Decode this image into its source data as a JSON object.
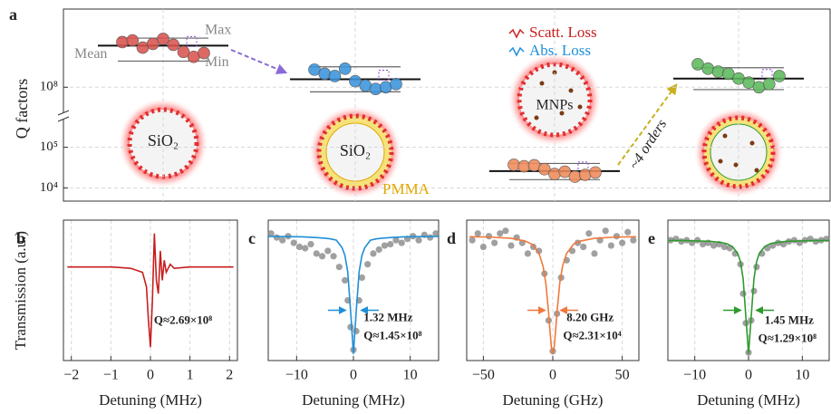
{
  "chart_data": [
    {
      "type": "scatter",
      "panel_label": "a",
      "ylabel": "Q factors",
      "yscale": "log",
      "axis_break": true,
      "ylim": [
        5000,
        200000
      ],
      "ylim_upper": [
        60000000.0,
        1000000000.0
      ],
      "yticks": [
        {
          "value": 10000,
          "label": "10⁴"
        },
        {
          "value": 100000,
          "label": "10⁵"
        },
        {
          "value": 100000000,
          "label": "10⁸"
        }
      ],
      "grid": true,
      "series": [
        {
          "color": "#d9534f",
          "values": [
            390000000.0,
            410000000.0,
            330000000.0,
            370000000.0,
            430000000.0,
            360000000.0,
            290000000.0,
            250000000.0,
            280000000.0
          ],
          "mean": 350000000.0,
          "max": 440000000.0,
          "min": 220000000.0
        },
        {
          "color": "#3a93dc",
          "values": [
            170000000.0,
            150000000.0,
            140000000.0,
            175000000.0,
            120000000.0,
            105000000.0,
            95000000.0,
            100000000.0,
            110000000.0
          ],
          "mean": 127000000.0,
          "max": 185000000.0,
          "min": 87000000.0
        },
        {
          "color": "#ee8a5a",
          "values": [
            37000,
            34000,
            36000,
            29000,
            22000,
            25000,
            19000,
            21000,
            24000
          ],
          "mean": 26000,
          "max": 40000,
          "min": 16000
        },
        {
          "color": "#5cb85c",
          "values": [
            200000000.0,
            175000000.0,
            160000000.0,
            150000000.0,
            130000000.0,
            115000000.0,
            100000000.0,
            110000000.0,
            140000000.0
          ],
          "mean": 130000000.0,
          "max": 180000000.0,
          "min": 93000000.0
        }
      ],
      "labels": {
        "max": "Max",
        "mean": "Mean",
        "min": "Min",
        "scatt_loss": "Scatt. Loss",
        "abs_loss": "Abs. Loss",
        "sio2_first": "SiO₂",
        "sio2_second": "SiO₂",
        "pmma": "PMMA",
        "mnps": "MNPs",
        "orders": "~4 orders"
      }
    },
    {
      "type": "line",
      "panel_label": "b",
      "ylabel": "Transmission (a.u.)",
      "xlabel": "Detuning (MHz)",
      "xlim": [
        -2.2,
        2.2
      ],
      "xticks": [
        {
          "value": -2,
          "label": "−2"
        },
        {
          "value": -1,
          "label": "−1"
        },
        0,
        1,
        2
      ],
      "ylim": [
        0,
        1.05
      ],
      "grid": true,
      "series": [
        {
          "style": "line",
          "color": "#c81e1e",
          "x": [
            -2.1,
            -1.5,
            -1,
            -0.5,
            -0.2,
            -0.1,
            -0.05,
            0,
            0.05,
            0.1,
            0.15,
            0.2,
            0.25,
            0.3,
            0.35,
            0.4,
            0.5,
            0.6,
            1,
            1.5,
            2.1
          ],
          "values": [
            0.7,
            0.7,
            0.7,
            0.69,
            0.66,
            0.55,
            0.3,
            0.1,
            0.45,
            0.95,
            0.6,
            0.5,
            0.82,
            0.6,
            0.75,
            0.66,
            0.72,
            0.69,
            0.7,
            0.7,
            0.7
          ]
        }
      ],
      "annotations": [
        "Q≈2.69×10⁸"
      ]
    },
    {
      "type": "line",
      "panel_label": "c",
      "xlabel": "Detuning (MHz)",
      "xlim": [
        -15,
        15
      ],
      "xticks": [
        {
          "value": -10,
          "label": "−10"
        },
        0,
        10
      ],
      "ylim": [
        0,
        1.05
      ],
      "grid": true,
      "series": [
        {
          "style": "markers",
          "color": "#777777",
          "x": [
            -14.5,
            -13.5,
            -12.5,
            -11.5,
            -10.5,
            -9.5,
            -8.5,
            -7.5,
            -6.5,
            -5.5,
            -4.5,
            -3.5,
            -2.5,
            -1.5,
            -1,
            -0.5,
            0,
            0.5,
            1,
            1.5,
            2.5,
            3.5,
            4.5,
            5.5,
            6.5,
            7.5,
            8.5,
            9.5,
            10.5,
            11.5,
            12.5,
            13.5,
            14.5
          ],
          "values": [
            0.95,
            0.92,
            0.9,
            0.93,
            0.88,
            0.85,
            0.84,
            0.87,
            0.8,
            0.78,
            0.82,
            0.78,
            0.7,
            0.6,
            0.45,
            0.25,
            0.08,
            0.22,
            0.45,
            0.62,
            0.72,
            0.8,
            0.83,
            0.86,
            0.87,
            0.9,
            0.88,
            0.91,
            0.93,
            0.9,
            0.94,
            0.92,
            0.95
          ]
        },
        {
          "style": "line",
          "color": "#1f8fd8",
          "x": [
            -15,
            -12,
            -9,
            -7,
            -5,
            -4,
            -3,
            -2,
            -1.5,
            -1,
            -0.5,
            0,
            0.5,
            1,
            1.5,
            2,
            3,
            4,
            5,
            7,
            9,
            12,
            15
          ],
          "values": [
            0.928,
            0.927,
            0.925,
            0.921,
            0.915,
            0.91,
            0.9,
            0.844,
            0.787,
            0.663,
            0.371,
            0.05,
            0.371,
            0.663,
            0.787,
            0.844,
            0.9,
            0.91,
            0.915,
            0.921,
            0.925,
            0.927,
            0.928
          ]
        }
      ],
      "annotations": [
        "1.32 MHz",
        "Q≈1.45×10⁸"
      ]
    },
    {
      "type": "line",
      "panel_label": "d",
      "xlabel": "Detuning (GHz)",
      "xlim": [
        -62,
        62
      ],
      "xticks": [
        {
          "value": -50,
          "label": "−50"
        },
        0,
        50
      ],
      "ylim": [
        0,
        1.05
      ],
      "grid": true,
      "series": [
        {
          "style": "markers",
          "color": "#777777",
          "x": [
            -58,
            -54,
            -50,
            -46,
            -42,
            -38,
            -34,
            -30,
            -26,
            -22,
            -18,
            -14,
            -10,
            -6,
            -3,
            0,
            3,
            6,
            10,
            14,
            18,
            22,
            26,
            30,
            34,
            38,
            42,
            46,
            50,
            54,
            58
          ],
          "values": [
            0.9,
            0.95,
            0.85,
            0.93,
            0.88,
            0.95,
            0.97,
            0.86,
            0.92,
            0.88,
            0.8,
            0.85,
            0.82,
            0.65,
            0.3,
            0.07,
            0.35,
            0.62,
            0.75,
            0.82,
            0.88,
            0.85,
            0.95,
            0.8,
            0.9,
            0.97,
            0.86,
            0.93,
            0.88,
            0.96,
            0.9
          ]
        },
        {
          "style": "line",
          "color": "#f0783c",
          "x": [
            -60,
            -45,
            -30,
            -20,
            -15,
            -10,
            -7,
            -5,
            -3,
            -2,
            -1,
            0,
            1,
            2,
            3,
            5,
            7,
            10,
            15,
            20,
            30,
            45,
            60
          ],
          "values": [
            0.926,
            0.923,
            0.914,
            0.894,
            0.87,
            0.803,
            0.705,
            0.577,
            0.357,
            0.219,
            0.099,
            0.05,
            0.099,
            0.219,
            0.357,
            0.577,
            0.705,
            0.803,
            0.87,
            0.894,
            0.914,
            0.923,
            0.926
          ]
        }
      ],
      "annotations": [
        "8.20 GHz",
        "Q≈2.31×10⁴"
      ]
    },
    {
      "type": "line",
      "panel_label": "e",
      "xlabel": "Detuning (MHz)",
      "xlim": [
        -15,
        15
      ],
      "xticks": [
        {
          "value": -10,
          "label": "−10"
        },
        0,
        10
      ],
      "ylim": [
        0,
        1.05
      ],
      "grid": true,
      "series": [
        {
          "style": "markers",
          "color": "#777777",
          "x": [
            -14.5,
            -13.5,
            -12.5,
            -11.5,
            -10.5,
            -9.5,
            -8.5,
            -7.5,
            -6.5,
            -5.5,
            -4.5,
            -3.5,
            -2.5,
            -1.5,
            -1,
            -0.5,
            0,
            0.5,
            1,
            1.5,
            2.5,
            3.5,
            4.5,
            5.5,
            6.5,
            7.5,
            8.5,
            9.5,
            10.5,
            11.5,
            12.5,
            13.5,
            14.5
          ],
          "values": [
            0.9,
            0.91,
            0.89,
            0.9,
            0.88,
            0.9,
            0.87,
            0.88,
            0.86,
            0.87,
            0.85,
            0.84,
            0.8,
            0.72,
            0.5,
            0.28,
            0.06,
            0.3,
            0.52,
            0.7,
            0.8,
            0.84,
            0.86,
            0.88,
            0.87,
            0.89,
            0.9,
            0.88,
            0.9,
            0.91,
            0.89,
            0.9,
            0.91
          ]
        },
        {
          "style": "line",
          "color": "#2e9a2e",
          "x": [
            -15,
            -12,
            -9,
            -7,
            -5,
            -4,
            -3,
            -2,
            -1.5,
            -1,
            -0.5,
            0,
            0.5,
            1,
            1.5,
            2,
            3,
            4,
            5,
            7,
            9,
            12,
            15
          ],
          "values": [
            0.898,
            0.897,
            0.894,
            0.891,
            0.882,
            0.873,
            0.853,
            0.8,
            0.74,
            0.61,
            0.33,
            0.05,
            0.33,
            0.61,
            0.74,
            0.8,
            0.853,
            0.873,
            0.882,
            0.891,
            0.894,
            0.897,
            0.898
          ]
        }
      ],
      "annotations": [
        "1.45 MHz",
        "Q≈1.29×10⁸"
      ]
    }
  ]
}
